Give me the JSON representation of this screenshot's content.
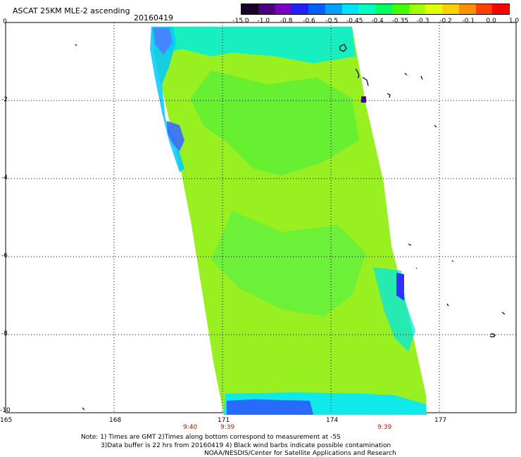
{
  "header": {
    "title": "ASCAT 25KM MLE-2 ascending",
    "date": "20160419"
  },
  "colorbar": {
    "labels": [
      "-15.0",
      "-1.0",
      "-0.8",
      "-0.6",
      "-0.5",
      "-0.45",
      "-0.4",
      "-0.35",
      "-0.3",
      "-0.2",
      "-0.1",
      "0.0",
      "1.0"
    ],
    "colors": [
      "#1a0028",
      "#4a0080",
      "#7a00c8",
      "#2020ff",
      "#0060ff",
      "#00a0ff",
      "#00e0ff",
      "#00ffc0",
      "#00ff60",
      "#40ff00",
      "#a0ff00",
      "#e0ff00",
      "#ffd000",
      "#ff9000",
      "#ff4000",
      "#ff0000"
    ]
  },
  "map": {
    "lat_labels": [
      "0",
      "-2",
      "-4",
      "-6",
      "-8",
      "-10"
    ],
    "lon_labels": [
      "165",
      "168",
      "171",
      "174",
      "177"
    ],
    "pass_times": [
      "9:40",
      "9:39",
      "9:39"
    ],
    "swath_color": "#80ff20"
  },
  "notes": {
    "line1": "Note: 1) Times are GMT 2)Times along bottom correspond to measurement at -5S",
    "line2": "3)Data buffer is 22 hrs from 20160419 4) Black wind barbs indicate possible contamination",
    "line3": "NOAA/NESDIS/Center for Satellite Applications and Research"
  }
}
